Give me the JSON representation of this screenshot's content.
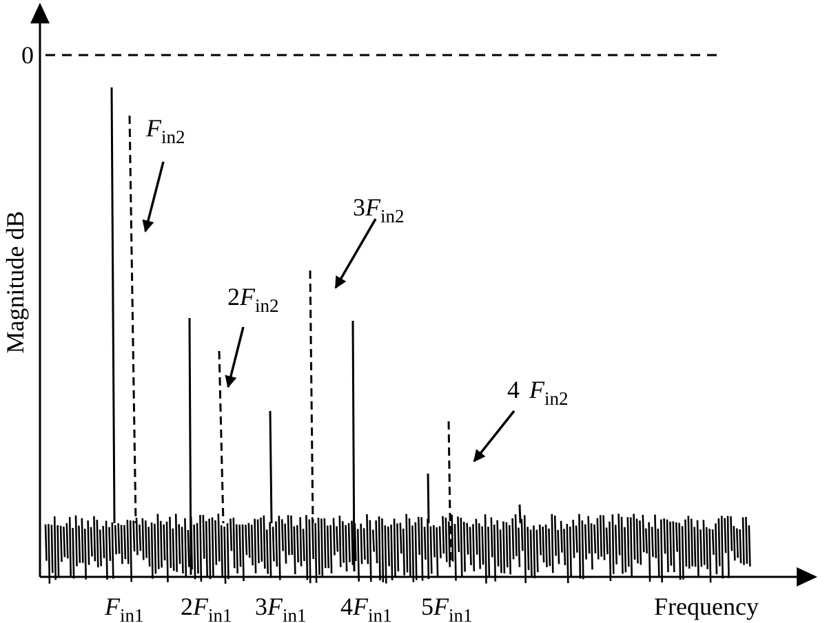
{
  "axis": {
    "zero_label": "0",
    "y_label": "Magnitude dB",
    "x_label": "Frequency"
  },
  "harmonics_in1": [
    {
      "symbol": "F",
      "sub": "in1"
    },
    {
      "coef": "2",
      "symbol": "F",
      "sub": "in1"
    },
    {
      "coef": "3",
      "symbol": "F",
      "sub": "in1"
    },
    {
      "coef": "4",
      "symbol": "F",
      "sub": "in1"
    },
    {
      "coef": "5",
      "symbol": "F",
      "sub": "in1"
    }
  ],
  "harmonics_in2": [
    {
      "symbol": "F",
      "sub": "in2"
    },
    {
      "coef": "2",
      "symbol": "F",
      "sub": "in2"
    },
    {
      "coef": "3",
      "symbol": "F",
      "sub": "in2"
    },
    {
      "coef": "4",
      "symbol": "F",
      "sub": "in2"
    }
  ]
}
